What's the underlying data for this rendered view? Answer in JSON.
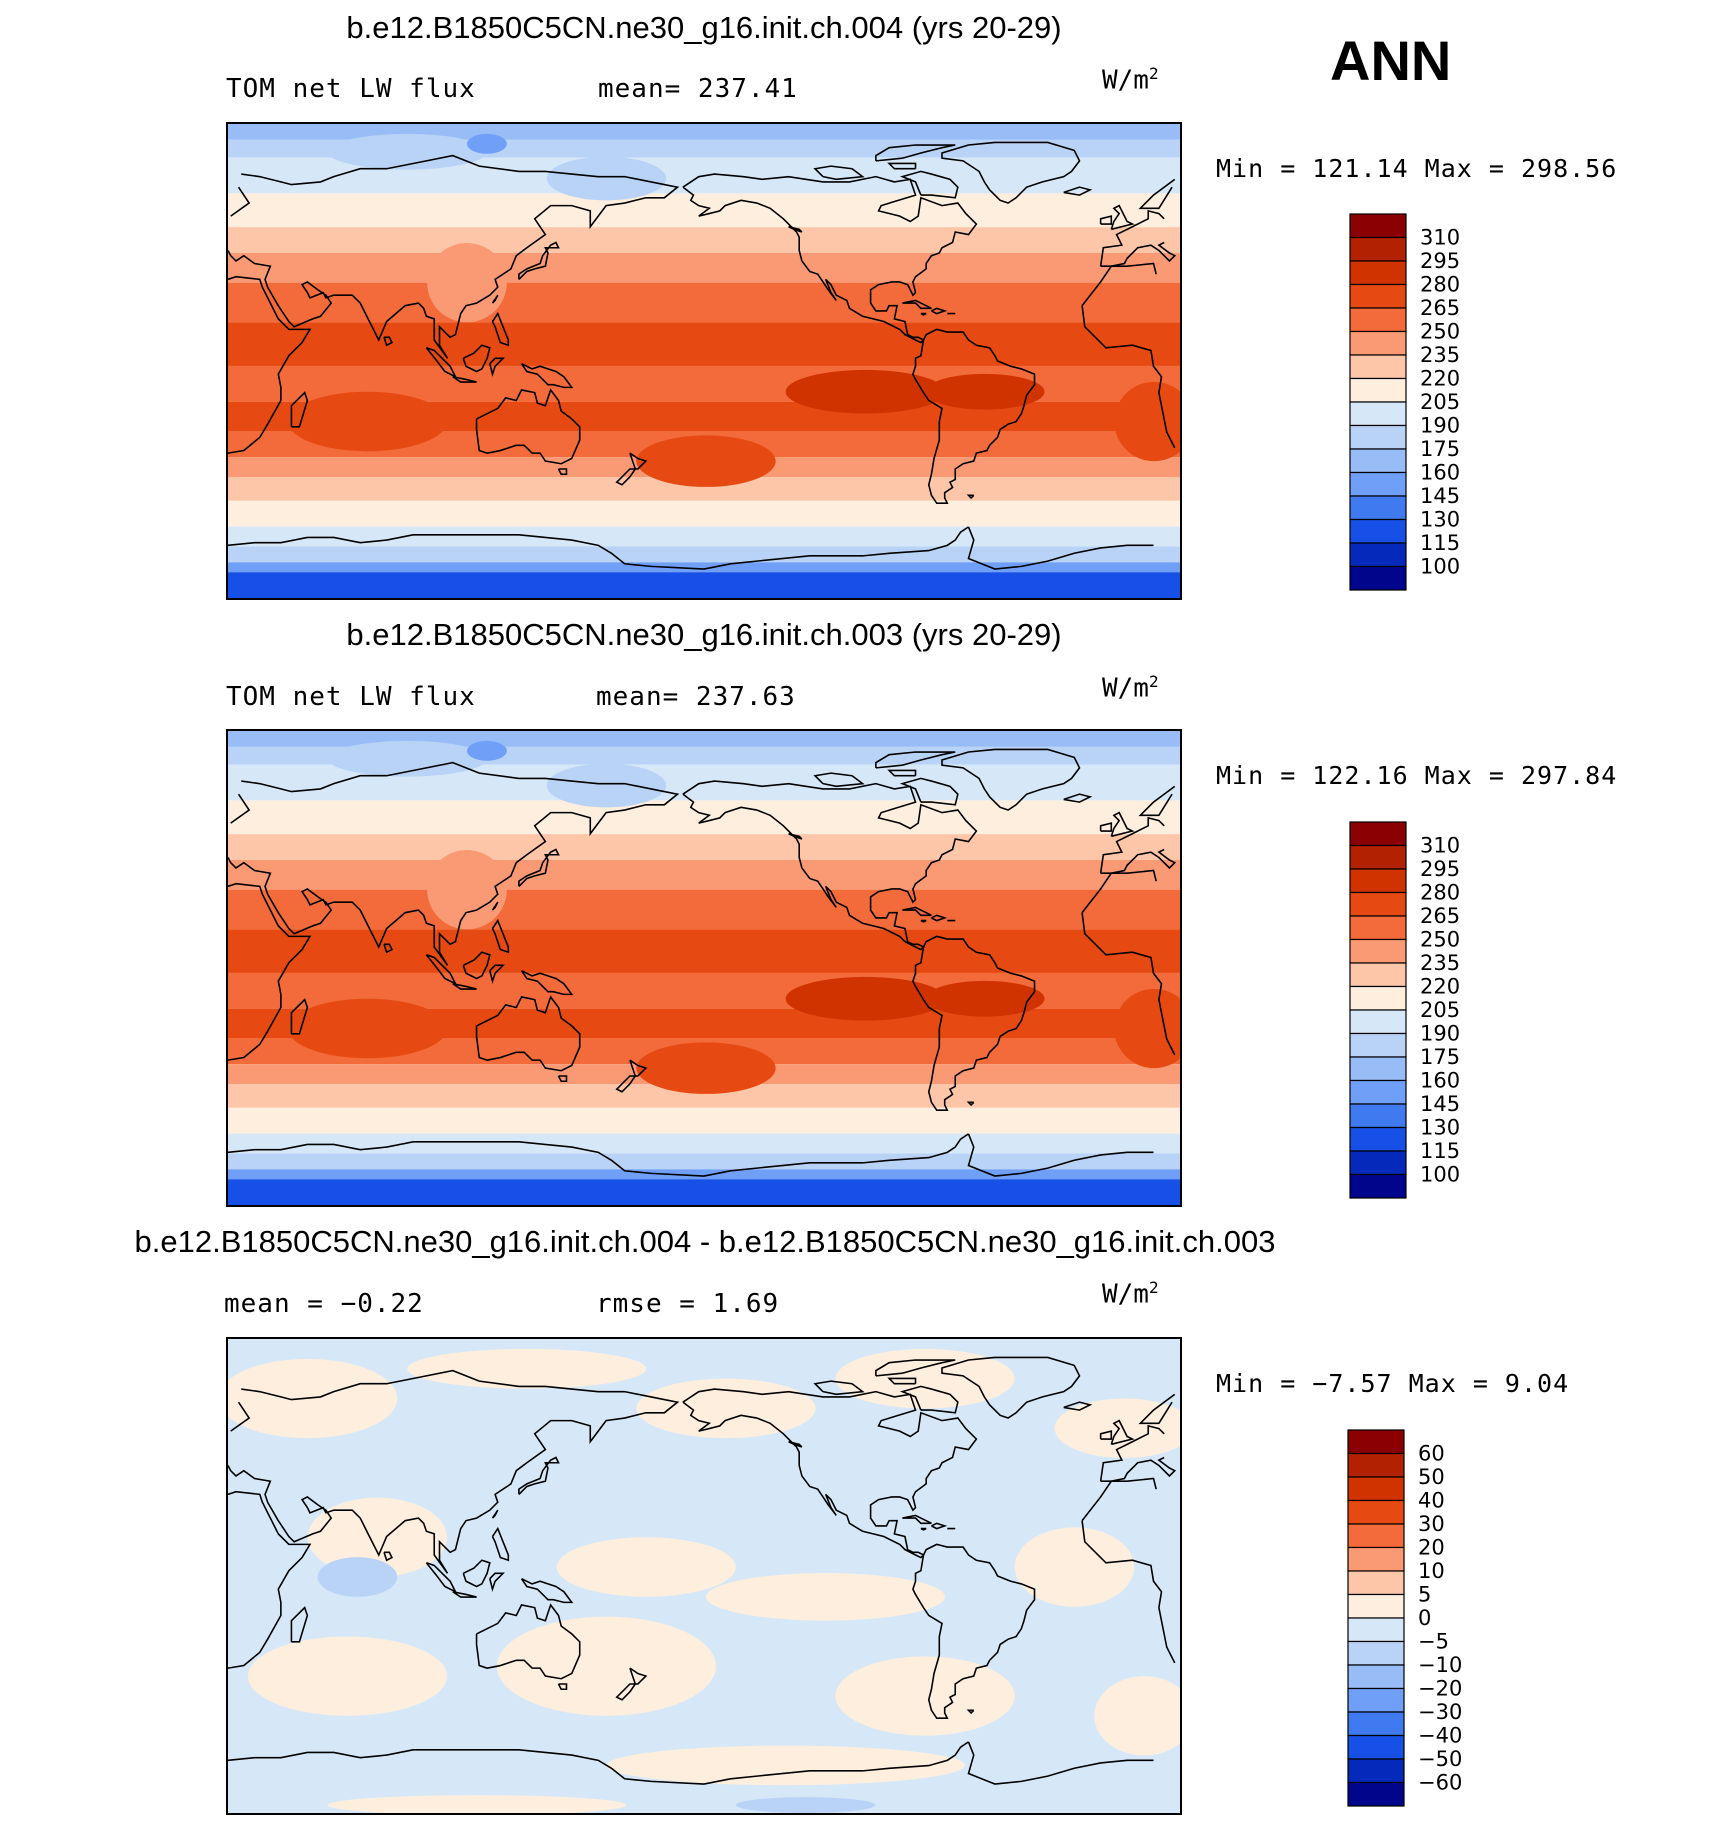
{
  "season": "ANN",
  "units": {
    "base": "W/m",
    "exp": "2"
  },
  "panels": [
    {
      "title": "b.e12.B1850C5CN.ne30_g16.init.ch.004 (yrs 20-29)",
      "left_label": "TOM net LW flux",
      "mid_label": "mean= 237.41",
      "minmax": "Min = 121.14 Max = 298.56",
      "colorbar_labels": [
        "310",
        "295",
        "280",
        "265",
        "250",
        "235",
        "220",
        "205",
        "190",
        "175",
        "160",
        "145",
        "130",
        "115",
        "100"
      ]
    },
    {
      "title": "b.e12.B1850C5CN.ne30_g16.init.ch.003 (yrs 20-29)",
      "left_label": "TOM net LW flux",
      "mid_label": "mean= 237.63",
      "minmax": "Min = 122.16 Max = 297.84",
      "colorbar_labels": [
        "310",
        "295",
        "280",
        "265",
        "250",
        "235",
        "220",
        "205",
        "190",
        "175",
        "160",
        "145",
        "130",
        "115",
        "100"
      ]
    },
    {
      "title": "b.e12.B1850C5CN.ne30_g16.init.ch.004 - b.e12.B1850C5CN.ne30_g16.init.ch.003",
      "left_label": "mean =   −0.22",
      "mid_label": "rmse =    1.69",
      "minmax": "Min =  −7.57 Max =    9.04",
      "colorbar_labels": [
        "60",
        "50",
        "40",
        "30",
        "20",
        "10",
        "5",
        "0",
        "−5",
        "−10",
        "−20",
        "−30",
        "−40",
        "−50",
        "−60"
      ]
    }
  ],
  "colors": {
    "levels": [
      "#8b0000",
      "#b22200",
      "#d13300",
      "#e64a12",
      "#f36b3a",
      "#fa9a74",
      "#fdc6a8",
      "#fdeede",
      "#d6e8f8",
      "#b8d3f6",
      "#98bcf6",
      "#6f9ff6",
      "#3f7af0",
      "#1650e6",
      "#0529ba",
      "#00068c"
    ],
    "lines": "#000000"
  },
  "chart_data": [
    {
      "type": "heatmap",
      "title": "b.e12.B1850C5CN.ne30_g16.init.ch.004 (yrs 20-29)",
      "variable": "TOM net LW flux",
      "units": "W/m2",
      "mean": 237.41,
      "min": 121.14,
      "max": 298.56,
      "contour_levels": [
        100,
        115,
        130,
        145,
        160,
        175,
        190,
        205,
        220,
        235,
        250,
        265,
        280,
        295,
        310
      ],
      "x_range": [
        0,
        360
      ],
      "y_range": [
        -90,
        90
      ]
    },
    {
      "type": "heatmap",
      "title": "b.e12.B1850C5CN.ne30_g16.init.ch.003 (yrs 20-29)",
      "variable": "TOM net LW flux",
      "units": "W/m2",
      "mean": 237.63,
      "min": 122.16,
      "max": 297.84,
      "contour_levels": [
        100,
        115,
        130,
        145,
        160,
        175,
        190,
        205,
        220,
        235,
        250,
        265,
        280,
        295,
        310
      ],
      "x_range": [
        0,
        360
      ],
      "y_range": [
        -90,
        90
      ]
    },
    {
      "type": "heatmap",
      "title": "b.e12.B1850C5CN.ne30_g16.init.ch.004 - b.e12.B1850C5CN.ne30_g16.init.ch.003",
      "units": "W/m2",
      "mean": -0.22,
      "rmse": 1.69,
      "min": -7.57,
      "max": 9.04,
      "contour_levels": [
        -60,
        -50,
        -40,
        -30,
        -20,
        -10,
        -5,
        0,
        5,
        10,
        20,
        30,
        40,
        50,
        60
      ],
      "x_range": [
        0,
        360
      ],
      "y_range": [
        -90,
        90
      ]
    }
  ]
}
